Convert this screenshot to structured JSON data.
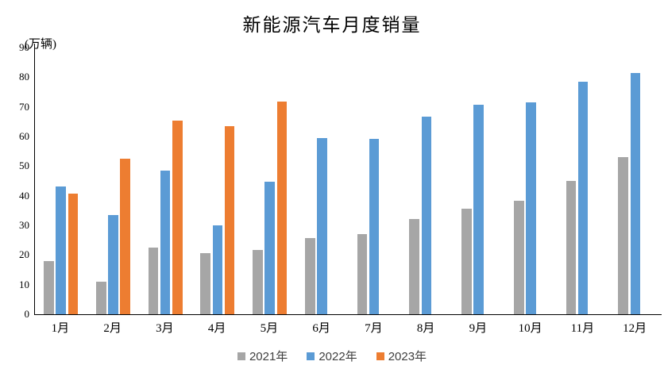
{
  "title": "新能源汽车月度销量",
  "y_axis_unit": "(万辆)",
  "chart_data": {
    "type": "bar",
    "title": "新能源汽车月度销量",
    "ylabel": "(万辆)",
    "xlabel": "",
    "ylim": [
      0,
      90
    ],
    "ytick_step": 10,
    "yticks": [
      0,
      10,
      20,
      30,
      40,
      50,
      60,
      70,
      80,
      90
    ],
    "grid": false,
    "legend_position": "bottom",
    "categories": [
      "1月",
      "2月",
      "3月",
      "4月",
      "5月",
      "6月",
      "7月",
      "8月",
      "9月",
      "10月",
      "11月",
      "12月"
    ],
    "series": [
      {
        "name": "2021年",
        "color": "#A6A6A6",
        "values": [
          17.9,
          11.0,
          22.6,
          20.6,
          21.7,
          25.6,
          27.1,
          32.1,
          35.7,
          38.3,
          45.0,
          53.1
        ]
      },
      {
        "name": "2022年",
        "color": "#5B9BD5",
        "values": [
          43.1,
          33.4,
          48.4,
          29.9,
          44.7,
          59.6,
          59.3,
          66.6,
          70.8,
          71.4,
          78.6,
          81.4
        ]
      },
      {
        "name": "2023年",
        "color": "#ED7D31",
        "values": [
          40.8,
          52.5,
          65.3,
          63.6,
          71.7,
          null,
          null,
          null,
          null,
          null,
          null,
          null
        ]
      }
    ]
  },
  "axis_color": "#000000",
  "background_color": "#ffffff"
}
